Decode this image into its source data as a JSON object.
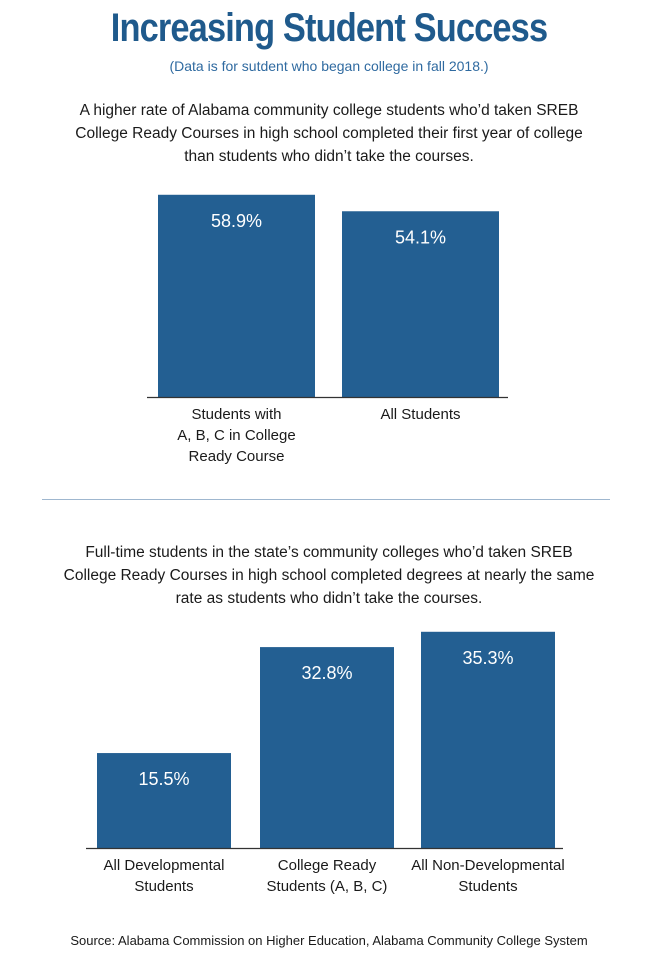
{
  "header": {
    "title": "Increasing Student Success",
    "subtitle": "(Data is for sutdent who began college in fall 2018.)"
  },
  "source": "Source: Alabama Commission on Higher Education, Alabama Community College System",
  "colors": {
    "bar": "#235f92",
    "title": "#1f5a8c",
    "axis": "#333333",
    "divider": "#9fb7cf"
  },
  "chart_data": [
    {
      "type": "bar",
      "description": "A higher rate of Alabama community college students who’d taken SREB College Ready Courses in high school completed their first year of college than students who didn’t take the courses.",
      "categories": [
        [
          "Students with",
          "A, B, C in College",
          "Ready Course"
        ],
        [
          "All Students"
        ]
      ],
      "values": [
        58.9,
        54.1
      ],
      "value_labels": [
        "58.9%",
        "54.1%"
      ],
      "xlabel": "",
      "ylabel": "",
      "ylim": [
        0,
        60
      ],
      "grid": false,
      "legend": "none"
    },
    {
      "type": "bar",
      "description": "Full-time students in the state’s community colleges who’d taken SREB College Ready Courses in high school completed degrees at nearly the same rate as students who didn’t take the courses.",
      "categories": [
        [
          "All Developmental",
          "Students"
        ],
        [
          "College Ready",
          "Students (A, B, C)"
        ],
        [
          "All Non-Developmental",
          "Students"
        ]
      ],
      "values": [
        15.5,
        32.8,
        35.3
      ],
      "value_labels": [
        "15.5%",
        "32.8%",
        "35.3%"
      ],
      "xlabel": "",
      "ylabel": "",
      "ylim": [
        0,
        36
      ],
      "grid": false,
      "legend": "none"
    }
  ]
}
